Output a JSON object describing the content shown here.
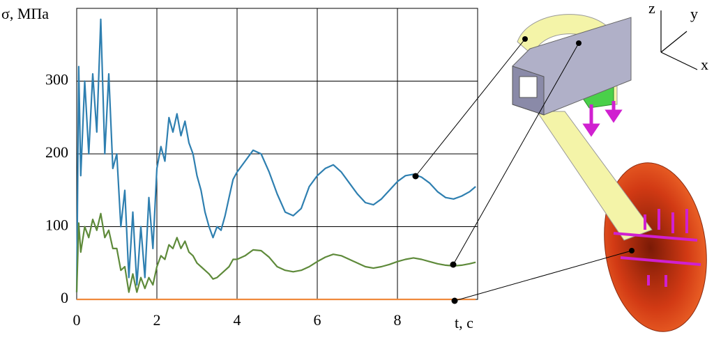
{
  "chart_data": {
    "type": "line",
    "y_label": "σ, МПа",
    "x_label": "t, с",
    "xlim": [
      0,
      10
    ],
    "ylim": [
      0,
      400
    ],
    "xticks": [
      0,
      2,
      4,
      6,
      8
    ],
    "yticks": [
      0,
      100,
      200,
      300
    ],
    "grid": true,
    "x": [
      0,
      0.05,
      0.1,
      0.2,
      0.3,
      0.4,
      0.5,
      0.6,
      0.7,
      0.8,
      0.9,
      1.0,
      1.1,
      1.2,
      1.3,
      1.4,
      1.5,
      1.6,
      1.7,
      1.8,
      1.9,
      2.0,
      2.1,
      2.2,
      2.3,
      2.4,
      2.5,
      2.6,
      2.7,
      2.8,
      2.9,
      3.0,
      3.1,
      3.2,
      3.3,
      3.4,
      3.5,
      3.6,
      3.7,
      3.8,
      3.9,
      4.0,
      4.2,
      4.4,
      4.6,
      4.8,
      5.0,
      5.2,
      5.4,
      5.6,
      5.8,
      6.0,
      6.2,
      6.4,
      6.6,
      6.8,
      7.0,
      7.2,
      7.4,
      7.6,
      7.8,
      8.0,
      8.2,
      8.4,
      8.6,
      8.8,
      9.0,
      9.2,
      9.4,
      9.6,
      9.8,
      9.95
    ],
    "series": [
      {
        "color": "#2e7fb0",
        "values": [
          10,
          320,
          170,
          300,
          200,
          310,
          230,
          385,
          200,
          310,
          180,
          200,
          100,
          150,
          30,
          120,
          20,
          100,
          30,
          140,
          70,
          180,
          210,
          190,
          250,
          230,
          255,
          225,
          245,
          215,
          200,
          170,
          150,
          120,
          100,
          85,
          100,
          95,
          115,
          140,
          165,
          175,
          190,
          205,
          200,
          175,
          145,
          120,
          115,
          125,
          155,
          170,
          180,
          185,
          175,
          160,
          145,
          133,
          130,
          138,
          150,
          162,
          170,
          172,
          168,
          160,
          148,
          140,
          138,
          142,
          148,
          155
        ]
      },
      {
        "color": "#5e8a3a",
        "values": [
          10,
          105,
          65,
          100,
          85,
          110,
          95,
          118,
          85,
          95,
          70,
          70,
          40,
          45,
          10,
          35,
          10,
          30,
          15,
          30,
          20,
          45,
          60,
          55,
          75,
          70,
          85,
          70,
          80,
          65,
          60,
          50,
          45,
          40,
          35,
          28,
          30,
          35,
          40,
          45,
          55,
          55,
          60,
          68,
          67,
          58,
          45,
          40,
          38,
          40,
          45,
          52,
          58,
          62,
          60,
          55,
          50,
          45,
          43,
          45,
          48,
          52,
          55,
          57,
          55,
          52,
          49,
          47,
          46,
          47,
          49,
          51
        ]
      },
      {
        "color": "#f08a3c",
        "x": [
          0,
          9.95
        ],
        "values": [
          0,
          0
        ]
      }
    ],
    "model_axes": [
      "z",
      "y",
      "x"
    ]
  }
}
